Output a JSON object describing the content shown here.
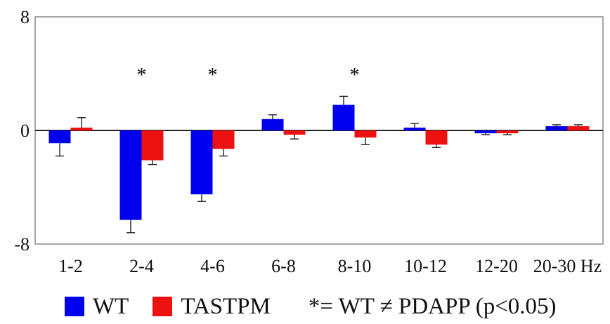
{
  "chart_data": {
    "type": "bar",
    "title": "",
    "xlabel": "",
    "ylabel": "",
    "ylim": [
      -8,
      8
    ],
    "y_ticks": [
      "8",
      "0",
      "-8"
    ],
    "categories": [
      "1-2",
      "2-4",
      "4-6",
      "6-8",
      "8-10",
      "10-12",
      "12-20",
      "20-30 Hz"
    ],
    "series": [
      {
        "name": "WT",
        "color": "#0000ee",
        "values": [
          -0.9,
          -6.3,
          -4.5,
          0.8,
          1.8,
          0.2,
          -0.2,
          0.3
        ],
        "errors": [
          0.9,
          0.9,
          0.5,
          0.3,
          0.6,
          0.3,
          0.1,
          0.1
        ]
      },
      {
        "name": "TASTPM",
        "color": "#ee1111",
        "values": [
          0.2,
          -2.1,
          -1.3,
          -0.3,
          -0.5,
          -1.0,
          -0.2,
          0.3
        ],
        "errors": [
          0.7,
          0.3,
          0.5,
          0.3,
          0.5,
          0.2,
          0.1,
          0.1
        ]
      }
    ],
    "annotations": [
      {
        "category": "2-4",
        "text": "*"
      },
      {
        "category": "4-6",
        "text": "*"
      },
      {
        "category": "8-10",
        "text": "*"
      }
    ],
    "legend": {
      "placement": "bottom",
      "note": "*= WT ≠ PDAPP (p<0.05)"
    },
    "grid": false
  }
}
